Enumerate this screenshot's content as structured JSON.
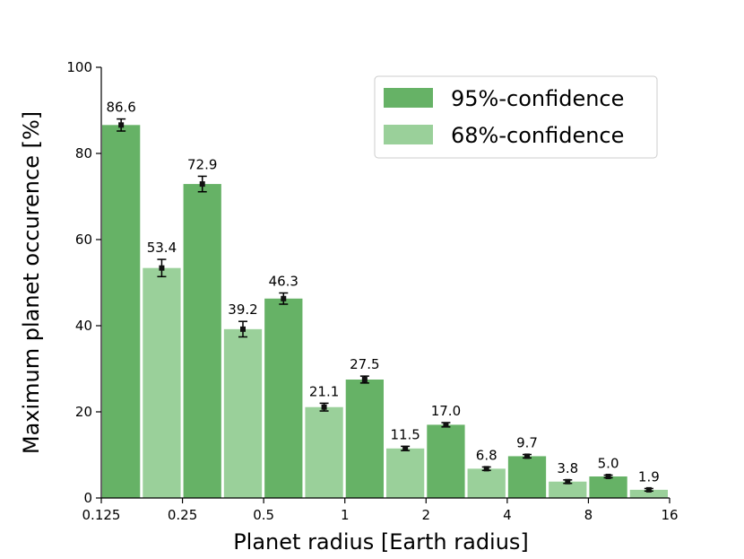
{
  "chart_data": {
    "type": "bar",
    "title": "",
    "xlabel": "Planet radius [Earth radius]",
    "ylabel": "Maximum planet occurence [%]",
    "xscale": "log2",
    "x_ticks": [
      "0.125",
      "0.25",
      "0.5",
      "1",
      "2",
      "4",
      "8",
      "16"
    ],
    "x_tick_values": [
      0.125,
      0.25,
      0.5,
      1,
      2,
      4,
      8,
      16
    ],
    "ylim": [
      0,
      100
    ],
    "y_ticks": [
      "0",
      "20",
      "40",
      "60",
      "80",
      "100"
    ],
    "grid": false,
    "legend_position": "top-right",
    "bin_edges": [
      0.125,
      0.25,
      0.5,
      1,
      2,
      4,
      8,
      16
    ],
    "series": [
      {
        "name": "95%-confidence",
        "color": "#66b266",
        "values": [
          86.6,
          72.9,
          46.3,
          27.5,
          17.0,
          9.7,
          5.0
        ],
        "labels": [
          "86.6",
          "72.9",
          "46.3",
          "27.5",
          "17.0",
          "9.7",
          "5.0"
        ],
        "errors": [
          1.4,
          1.8,
          1.3,
          0.8,
          0.5,
          0.4,
          0.3
        ]
      },
      {
        "name": "68%-confidence",
        "color": "#9ad09a",
        "values": [
          53.4,
          39.2,
          21.1,
          11.5,
          6.8,
          3.8,
          1.9
        ],
        "labels": [
          "53.4",
          "39.2",
          "21.1",
          "11.5",
          "6.8",
          "3.8",
          "1.9"
        ],
        "errors": [
          2.0,
          1.8,
          0.9,
          0.5,
          0.4,
          0.4,
          0.3
        ]
      }
    ]
  }
}
